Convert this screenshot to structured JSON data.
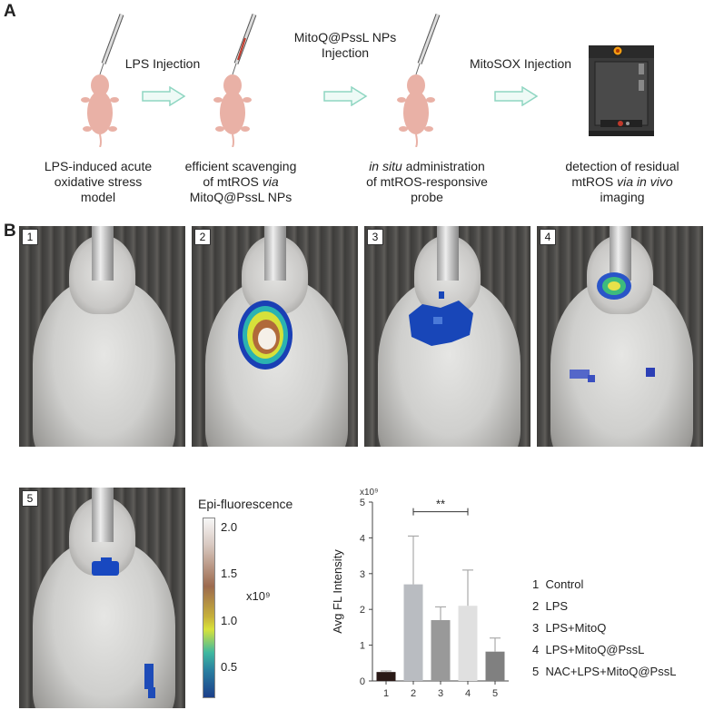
{
  "panel_a": {
    "letter": "A",
    "arrows": [
      {
        "label": "LPS Injection"
      },
      {
        "label": "MitoQ@PssL NPs Injection"
      },
      {
        "label": "MitoSOX Injection"
      }
    ],
    "steps": [
      {
        "caption_lines": [
          "LPS-induced acute",
          "oxidative stress",
          "model"
        ]
      },
      {
        "caption_lines": [
          "efficient scavenging",
          "of mtROS via",
          "MitoQ@PssL NPs"
        ]
      },
      {
        "caption_lines": [
          "in situ administration",
          "of mtROS-responsive",
          "probe"
        ]
      },
      {
        "caption_lines": [
          "detection of residual",
          "mtROS via in vivo",
          "imaging"
        ]
      }
    ]
  },
  "panel_b": {
    "letter": "B",
    "images": [
      {
        "num": "1"
      },
      {
        "num": "2"
      },
      {
        "num": "3"
      },
      {
        "num": "4"
      },
      {
        "num": "5"
      }
    ],
    "colorbar": {
      "title": "Epi-fluorescence",
      "ticks": [
        "2.0",
        "1.5",
        "1.0",
        "0.5"
      ],
      "exponent_label": "x10⁹"
    },
    "legend": [
      {
        "num": "1",
        "label": "Control"
      },
      {
        "num": "2",
        "label": "LPS"
      },
      {
        "num": "3",
        "label": "LPS+MitoQ"
      },
      {
        "num": "4",
        "label": "LPS+MitoQ@PssL"
      },
      {
        "num": "5",
        "label": "NAC+LPS+MitoQ@PssL"
      }
    ]
  },
  "chart_data": {
    "type": "bar",
    "categories": [
      "1",
      "2",
      "3",
      "4",
      "5"
    ],
    "values": [
      0.25,
      2.7,
      1.7,
      2.1,
      0.82
    ],
    "errors": [
      0.03,
      1.35,
      0.37,
      1.0,
      0.38
    ],
    "colors": [
      "#2a1a17",
      "#b9bcc1",
      "#999999",
      "#e0e0e0",
      "#808080"
    ],
    "ylabel": "Avg FL Intensity",
    "y_scale_label": "x10⁹",
    "ylim": [
      0,
      5
    ],
    "yticks": [
      0,
      1,
      2,
      3,
      4,
      5
    ],
    "significance": {
      "from": "2",
      "to": "4",
      "label": "**"
    }
  }
}
